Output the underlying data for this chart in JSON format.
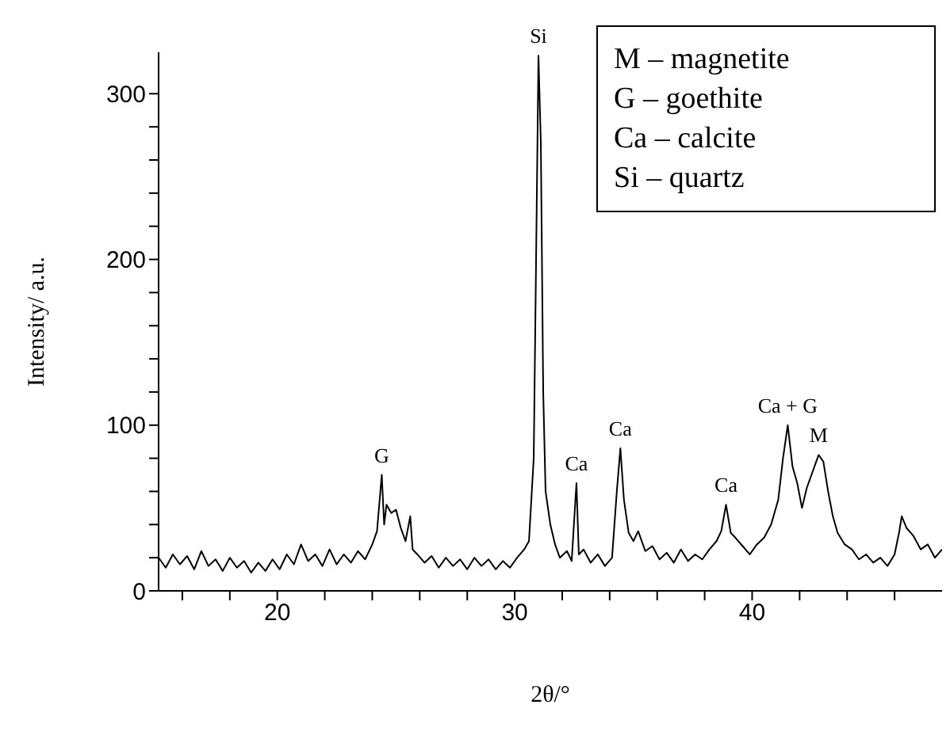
{
  "chart_data": {
    "type": "line",
    "xlabel": "2θ/°",
    "ylabel": "Intensity/ a.u.",
    "xlim": [
      15,
      48
    ],
    "ylim": [
      0,
      325
    ],
    "xticks": [
      {
        "value": 16,
        "label": null
      },
      {
        "value": 18,
        "label": null
      },
      20,
      {
        "value": 22,
        "label": null
      },
      {
        "value": 24,
        "label": null
      },
      {
        "value": 26,
        "label": null
      },
      {
        "value": 28,
        "label": null
      },
      30,
      {
        "value": 32,
        "label": null
      },
      {
        "value": 34,
        "label": null
      },
      {
        "value": 36,
        "label": null
      },
      {
        "value": 38,
        "label": null
      },
      40,
      {
        "value": 42,
        "label": null
      },
      {
        "value": 44,
        "label": null
      },
      {
        "value": 46,
        "label": null
      }
    ],
    "yticks": [
      0,
      {
        "value": 20,
        "label": null
      },
      {
        "value": 40,
        "label": null
      },
      {
        "value": 60,
        "label": null
      },
      {
        "value": 80,
        "label": null
      },
      100,
      {
        "value": 120,
        "label": null
      },
      {
        "value": 140,
        "label": null
      },
      {
        "value": 160,
        "label": null
      },
      {
        "value": 180,
        "label": null
      },
      200,
      {
        "value": 220,
        "label": null
      },
      {
        "value": 240,
        "label": null
      },
      {
        "value": 260,
        "label": null
      },
      {
        "value": 280,
        "label": null
      },
      300
    ],
    "grid": false,
    "legend": false,
    "marker": "none",
    "line_style": "solid",
    "series": [
      {
        "color": "#000000",
        "x": [
          15.0,
          15.3,
          15.6,
          15.9,
          16.2,
          16.5,
          16.8,
          17.1,
          17.4,
          17.7,
          18.0,
          18.3,
          18.6,
          18.9,
          19.2,
          19.5,
          19.8,
          20.1,
          20.4,
          20.7,
          21.0,
          21.3,
          21.6,
          21.9,
          22.2,
          22.5,
          22.8,
          23.1,
          23.4,
          23.7,
          24.0,
          24.2,
          24.4,
          24.5,
          24.6,
          24.8,
          25.0,
          25.2,
          25.4,
          25.6,
          25.7,
          25.9,
          26.2,
          26.5,
          26.8,
          27.1,
          27.4,
          27.7,
          28.0,
          28.3,
          28.6,
          28.9,
          29.2,
          29.5,
          29.8,
          30.1,
          30.4,
          30.6,
          30.8,
          30.9,
          31.0,
          31.1,
          31.2,
          31.3,
          31.5,
          31.7,
          31.9,
          32.2,
          32.4,
          32.6,
          32.7,
          32.9,
          33.2,
          33.5,
          33.8,
          34.1,
          34.3,
          34.45,
          34.6,
          34.8,
          35.0,
          35.2,
          35.5,
          35.8,
          36.1,
          36.4,
          36.7,
          37.0,
          37.3,
          37.6,
          37.9,
          38.2,
          38.5,
          38.7,
          38.9,
          39.1,
          39.3,
          39.6,
          39.9,
          40.2,
          40.5,
          40.8,
          41.1,
          41.3,
          41.5,
          41.7,
          41.9,
          42.1,
          42.3,
          42.5,
          42.8,
          43.0,
          43.2,
          43.4,
          43.6,
          43.9,
          44.2,
          44.5,
          44.8,
          45.1,
          45.4,
          45.7,
          46.0,
          46.2,
          46.3,
          46.5,
          46.8,
          47.1,
          47.4,
          47.7,
          48.0
        ],
        "values": [
          20,
          14,
          22,
          16,
          21,
          13,
          24,
          15,
          19,
          12,
          20,
          14,
          18,
          11,
          17,
          12,
          19,
          13,
          22,
          16,
          28,
          18,
          22,
          15,
          25,
          16,
          22,
          17,
          24,
          19,
          28,
          36,
          70,
          40,
          52,
          47,
          49,
          38,
          30,
          45,
          25,
          22,
          17,
          21,
          14,
          20,
          15,
          19,
          13,
          20,
          15,
          19,
          13,
          18,
          14,
          20,
          25,
          30,
          80,
          200,
          323,
          270,
          120,
          60,
          40,
          28,
          20,
          24,
          18,
          65,
          22,
          25,
          17,
          22,
          15,
          20,
          60,
          86,
          55,
          35,
          30,
          36,
          24,
          27,
          19,
          23,
          17,
          25,
          18,
          22,
          19,
          25,
          30,
          36,
          52,
          35,
          32,
          27,
          22,
          28,
          32,
          40,
          55,
          80,
          100,
          75,
          65,
          50,
          62,
          70,
          82,
          78,
          60,
          45,
          35,
          28,
          25,
          19,
          22,
          17,
          20,
          15,
          22,
          36,
          45,
          38,
          33,
          25,
          28,
          20,
          25
        ]
      }
    ],
    "annotations": [
      "M – magnetite",
      "G – goethite",
      "Ca – calcite",
      "Si – quartz",
      {
        "text": "G",
        "x": 24.4,
        "y": 70
      },
      {
        "text": "Si",
        "x": 31.0,
        "y": 323
      },
      {
        "text": "Ca",
        "x": 32.6,
        "y": 65
      },
      {
        "text": "Ca",
        "x": 34.45,
        "y": 86
      },
      {
        "text": "Ca",
        "x": 38.9,
        "y": 52
      },
      {
        "text": "Ca + G",
        "x": 41.5,
        "y": 100
      },
      {
        "text": "M",
        "x": 42.8,
        "y": 82
      }
    ]
  }
}
